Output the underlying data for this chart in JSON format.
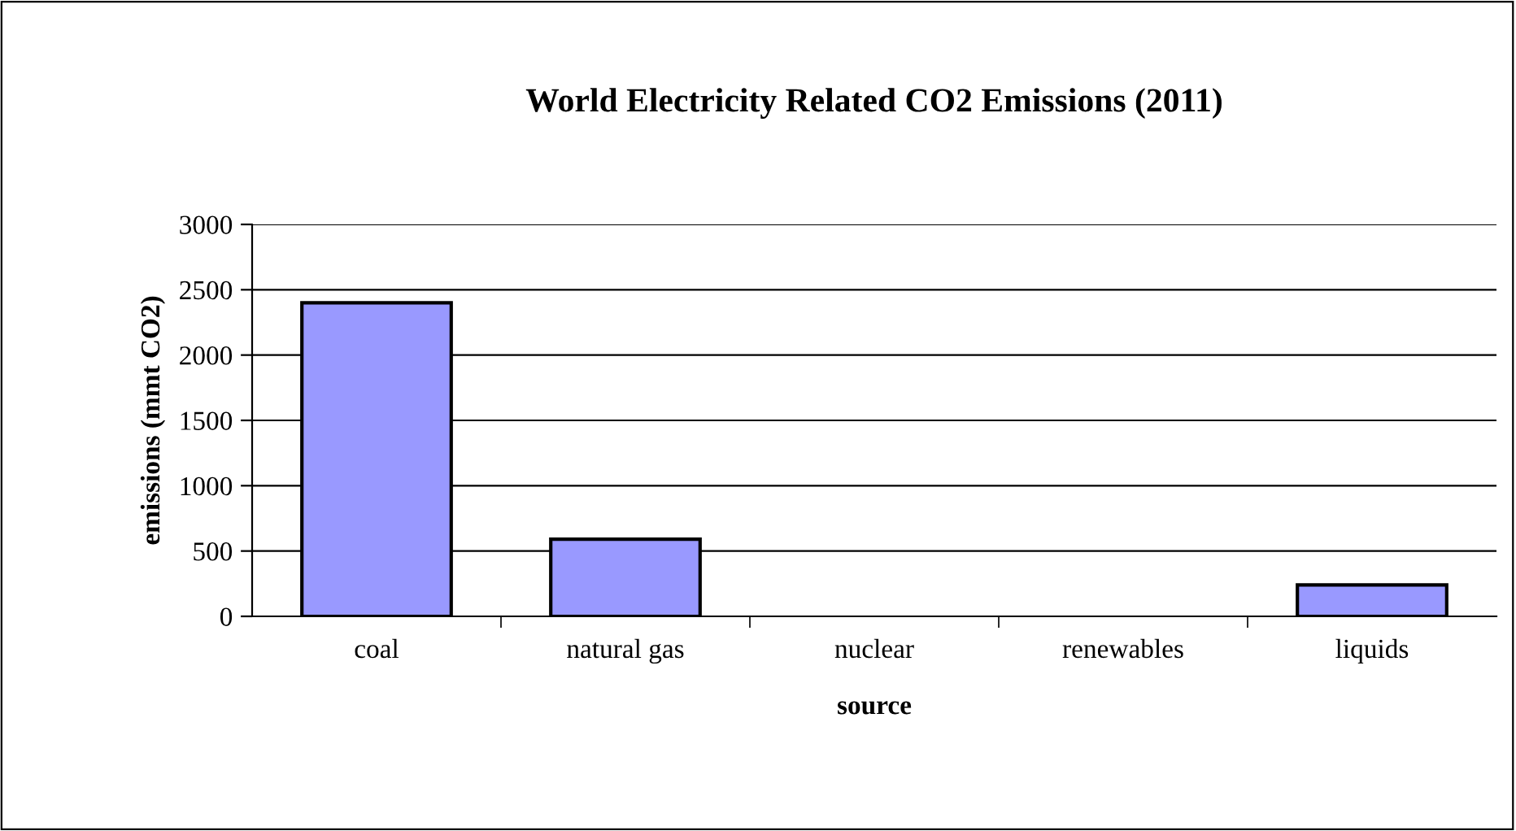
{
  "chart_data": {
    "type": "bar",
    "title": "World Electricity Related CO2 Emissions (2011)",
    "xlabel": "source",
    "ylabel": "emissions (mmt CO2)",
    "categories": [
      "coal",
      "natural gas",
      "nuclear",
      "renewables",
      "liquids"
    ],
    "values": [
      2400,
      590,
      0,
      0,
      240
    ],
    "color": "#9999ff",
    "ylim": [
      0,
      3000
    ],
    "yticks": [
      0,
      500,
      1000,
      1500,
      2000,
      2500,
      3000
    ],
    "grid": "y",
    "legend": false
  }
}
